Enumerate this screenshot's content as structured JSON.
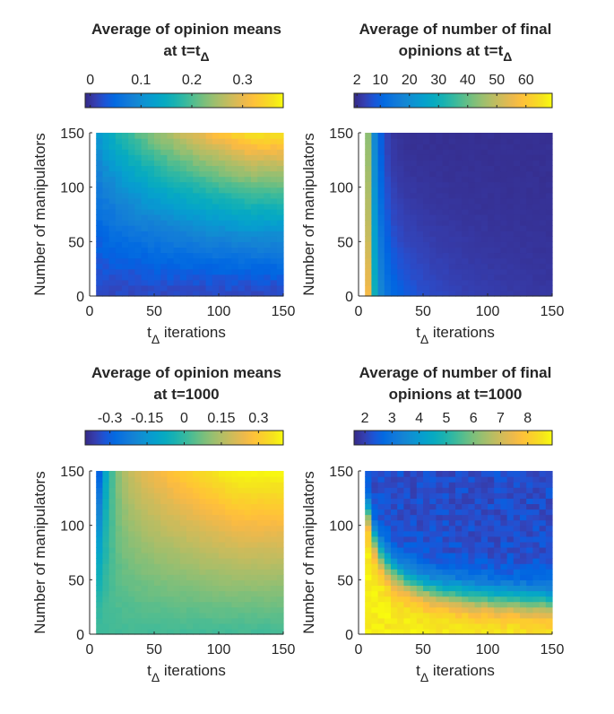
{
  "chart_data": [
    {
      "type": "heatmap",
      "title_lines": [
        "Average of opinion means",
        "at t=t"
      ],
      "title_sub": "Δ",
      "xlabel": "t",
      "xlabel_sub": "Δ",
      "xlabel_rest": " iterations",
      "ylabel": "Number of manipulators",
      "x_range": [
        5,
        150
      ],
      "y_range": [
        0,
        150
      ],
      "xlim": [
        0,
        150
      ],
      "ylim": [
        0,
        150
      ],
      "xticks": [
        "0",
        "50",
        "100",
        "150"
      ],
      "yticks": [
        "0",
        "50",
        "100",
        "150"
      ],
      "colorbar": {
        "min": -0.01,
        "max": 0.38,
        "ticks": [
          0,
          0.1,
          0.2,
          0.3
        ],
        "tick_labels": [
          "0",
          "0.1",
          "0.2",
          "0.3"
        ]
      },
      "surface": "means_tdelta"
    },
    {
      "type": "heatmap",
      "title_lines": [
        "Average of number of final",
        "opinions at t=t"
      ],
      "title_sub": "Δ",
      "xlabel": "t",
      "xlabel_sub": "Δ",
      "xlabel_rest": " iterations",
      "ylabel": "Number of manipulators",
      "x_range": [
        5,
        150
      ],
      "y_range": [
        0,
        150
      ],
      "xlim": [
        0,
        150
      ],
      "ylim": [
        0,
        150
      ],
      "xticks": [
        "0",
        "50",
        "100",
        "150"
      ],
      "yticks": [
        "0",
        "50",
        "100",
        "150"
      ],
      "colorbar": {
        "min": 1,
        "max": 69,
        "ticks": [
          2,
          10,
          20,
          30,
          40,
          50,
          60
        ],
        "tick_labels": [
          "2",
          "10",
          "20",
          "30",
          "40",
          "50",
          "60"
        ]
      },
      "surface": "count_tdelta"
    },
    {
      "type": "heatmap",
      "title_lines": [
        "Average of opinion means",
        "at t=1000"
      ],
      "title_sub": "",
      "xlabel": "t",
      "xlabel_sub": "Δ",
      "xlabel_rest": " iterations",
      "ylabel": "Number of manipulators",
      "x_range": [
        5,
        150
      ],
      "y_range": [
        0,
        150
      ],
      "xlim": [
        0,
        150
      ],
      "ylim": [
        0,
        150
      ],
      "xticks": [
        "0",
        "50",
        "100",
        "150"
      ],
      "yticks": [
        "0",
        "50",
        "100",
        "150"
      ],
      "colorbar": {
        "min": -0.4,
        "max": 0.4,
        "ticks": [
          -0.3,
          -0.15,
          0,
          0.15,
          0.3
        ],
        "tick_labels": [
          "-0.3",
          "-0.15",
          "0",
          "0.15",
          "0.3"
        ]
      },
      "surface": "means_1000"
    },
    {
      "type": "heatmap",
      "title_lines": [
        "Average of number of final",
        "opinions at t=1000"
      ],
      "title_sub": "",
      "xlabel": "t",
      "xlabel_sub": "Δ",
      "xlabel_rest": " iterations",
      "ylabel": "Number of manipulators",
      "x_range": [
        5,
        150
      ],
      "y_range": [
        0,
        150
      ],
      "xlim": [
        0,
        150
      ],
      "ylim": [
        0,
        150
      ],
      "xticks": [
        "0",
        "50",
        "100",
        "150"
      ],
      "yticks": [
        "0",
        "50",
        "100",
        "150"
      ],
      "colorbar": {
        "min": 1.6,
        "max": 8.9,
        "ticks": [
          2,
          3,
          4,
          5,
          6,
          7,
          8
        ],
        "tick_labels": [
          "2",
          "3",
          "4",
          "5",
          "6",
          "7",
          "8"
        ]
      },
      "surface": "count_1000"
    }
  ]
}
